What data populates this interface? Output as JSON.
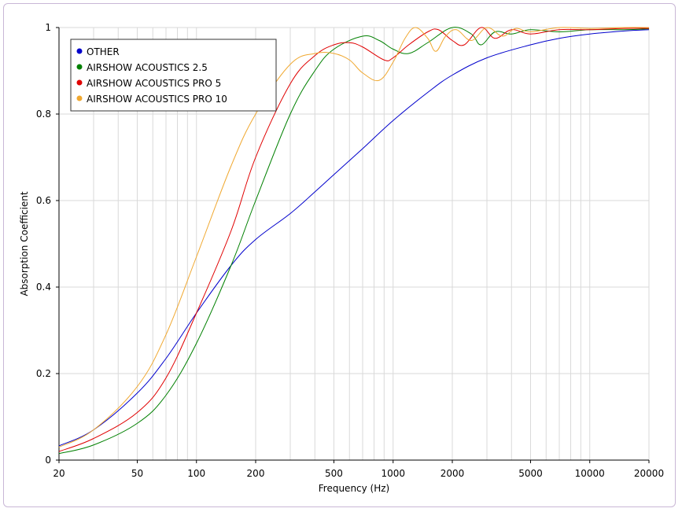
{
  "chart_data": {
    "type": "line",
    "title": "",
    "xlabel": "Frequency (Hz)",
    "ylabel": "Absorption Coefficient",
    "x_scale": "log",
    "xlim": [
      20,
      20000
    ],
    "ylim": [
      0,
      1
    ],
    "x_ticks": [
      20,
      50,
      100,
      200,
      500,
      1000,
      2000,
      5000,
      10000,
      20000
    ],
    "x_tick_labels": [
      "20",
      "50",
      "100",
      "200",
      "500",
      "1000",
      "2000",
      "5000",
      "10000",
      "20000"
    ],
    "y_ticks": [
      0,
      0.2,
      0.4,
      0.6,
      0.8,
      1
    ],
    "y_tick_labels": [
      "0",
      "0.2",
      "0.4",
      "0.6",
      "0.8",
      "1"
    ],
    "grid": true,
    "legend_position": "top-left",
    "series": [
      {
        "name": "OTHER",
        "color": "#0000cc",
        "points": [
          [
            20,
            0.033
          ],
          [
            30,
            0.07
          ],
          [
            50,
            0.155
          ],
          [
            70,
            0.235
          ],
          [
            100,
            0.34
          ],
          [
            150,
            0.45
          ],
          [
            200,
            0.51
          ],
          [
            300,
            0.57
          ],
          [
            400,
            0.62
          ],
          [
            500,
            0.66
          ],
          [
            700,
            0.72
          ],
          [
            1000,
            0.785
          ],
          [
            1500,
            0.85
          ],
          [
            2000,
            0.89
          ],
          [
            3000,
            0.93
          ],
          [
            5000,
            0.96
          ],
          [
            7000,
            0.975
          ],
          [
            10000,
            0.985
          ],
          [
            15000,
            0.992
          ],
          [
            20000,
            0.995
          ]
        ]
      },
      {
        "name": "AIRSHOW ACOUSTICS 2.5",
        "color": "#008000",
        "points": [
          [
            20,
            0.015
          ],
          [
            30,
            0.035
          ],
          [
            50,
            0.085
          ],
          [
            70,
            0.15
          ],
          [
            100,
            0.27
          ],
          [
            150,
            0.45
          ],
          [
            200,
            0.6
          ],
          [
            300,
            0.8
          ],
          [
            400,
            0.9
          ],
          [
            500,
            0.95
          ],
          [
            700,
            0.98
          ],
          [
            850,
            0.97
          ],
          [
            1000,
            0.95
          ],
          [
            1200,
            0.94
          ],
          [
            1500,
            0.965
          ],
          [
            2000,
            1.0
          ],
          [
            2500,
            0.985
          ],
          [
            2800,
            0.96
          ],
          [
            3300,
            0.99
          ],
          [
            4000,
            0.985
          ],
          [
            5000,
            0.995
          ],
          [
            7000,
            0.99
          ],
          [
            10000,
            0.995
          ],
          [
            15000,
            0.995
          ],
          [
            20000,
            0.997
          ]
        ]
      },
      {
        "name": "AIRSHOW ACOUSTICS PRO 5",
        "color": "#e00000",
        "points": [
          [
            20,
            0.02
          ],
          [
            30,
            0.05
          ],
          [
            50,
            0.11
          ],
          [
            70,
            0.19
          ],
          [
            100,
            0.34
          ],
          [
            150,
            0.53
          ],
          [
            200,
            0.7
          ],
          [
            300,
            0.87
          ],
          [
            400,
            0.935
          ],
          [
            500,
            0.96
          ],
          [
            600,
            0.965
          ],
          [
            700,
            0.955
          ],
          [
            900,
            0.925
          ],
          [
            1000,
            0.93
          ],
          [
            1200,
            0.96
          ],
          [
            1500,
            0.99
          ],
          [
            1700,
            0.995
          ],
          [
            2000,
            0.97
          ],
          [
            2300,
            0.96
          ],
          [
            2800,
            1.0
          ],
          [
            3300,
            0.975
          ],
          [
            4000,
            0.995
          ],
          [
            5000,
            0.985
          ],
          [
            7000,
            0.995
          ],
          [
            10000,
            0.995
          ],
          [
            15000,
            0.998
          ],
          [
            20000,
            0.998
          ]
        ]
      },
      {
        "name": "AIRSHOW ACOUSTICS PRO 10",
        "color": "#f0a830",
        "points": [
          [
            20,
            0.03
          ],
          [
            30,
            0.07
          ],
          [
            50,
            0.17
          ],
          [
            70,
            0.29
          ],
          [
            100,
            0.47
          ],
          [
            150,
            0.68
          ],
          [
            200,
            0.8
          ],
          [
            300,
            0.915
          ],
          [
            400,
            0.94
          ],
          [
            500,
            0.94
          ],
          [
            600,
            0.925
          ],
          [
            700,
            0.895
          ],
          [
            850,
            0.878
          ],
          [
            1000,
            0.92
          ],
          [
            1150,
            0.975
          ],
          [
            1300,
            1.0
          ],
          [
            1500,
            0.975
          ],
          [
            1650,
            0.945
          ],
          [
            1850,
            0.98
          ],
          [
            2100,
            0.995
          ],
          [
            2500,
            0.97
          ],
          [
            3000,
            1.0
          ],
          [
            3600,
            0.98
          ],
          [
            4200,
            0.998
          ],
          [
            5000,
            0.99
          ],
          [
            7000,
            1.0
          ],
          [
            10000,
            0.998
          ],
          [
            15000,
            1.0
          ],
          [
            20000,
            1.0
          ]
        ]
      }
    ]
  }
}
